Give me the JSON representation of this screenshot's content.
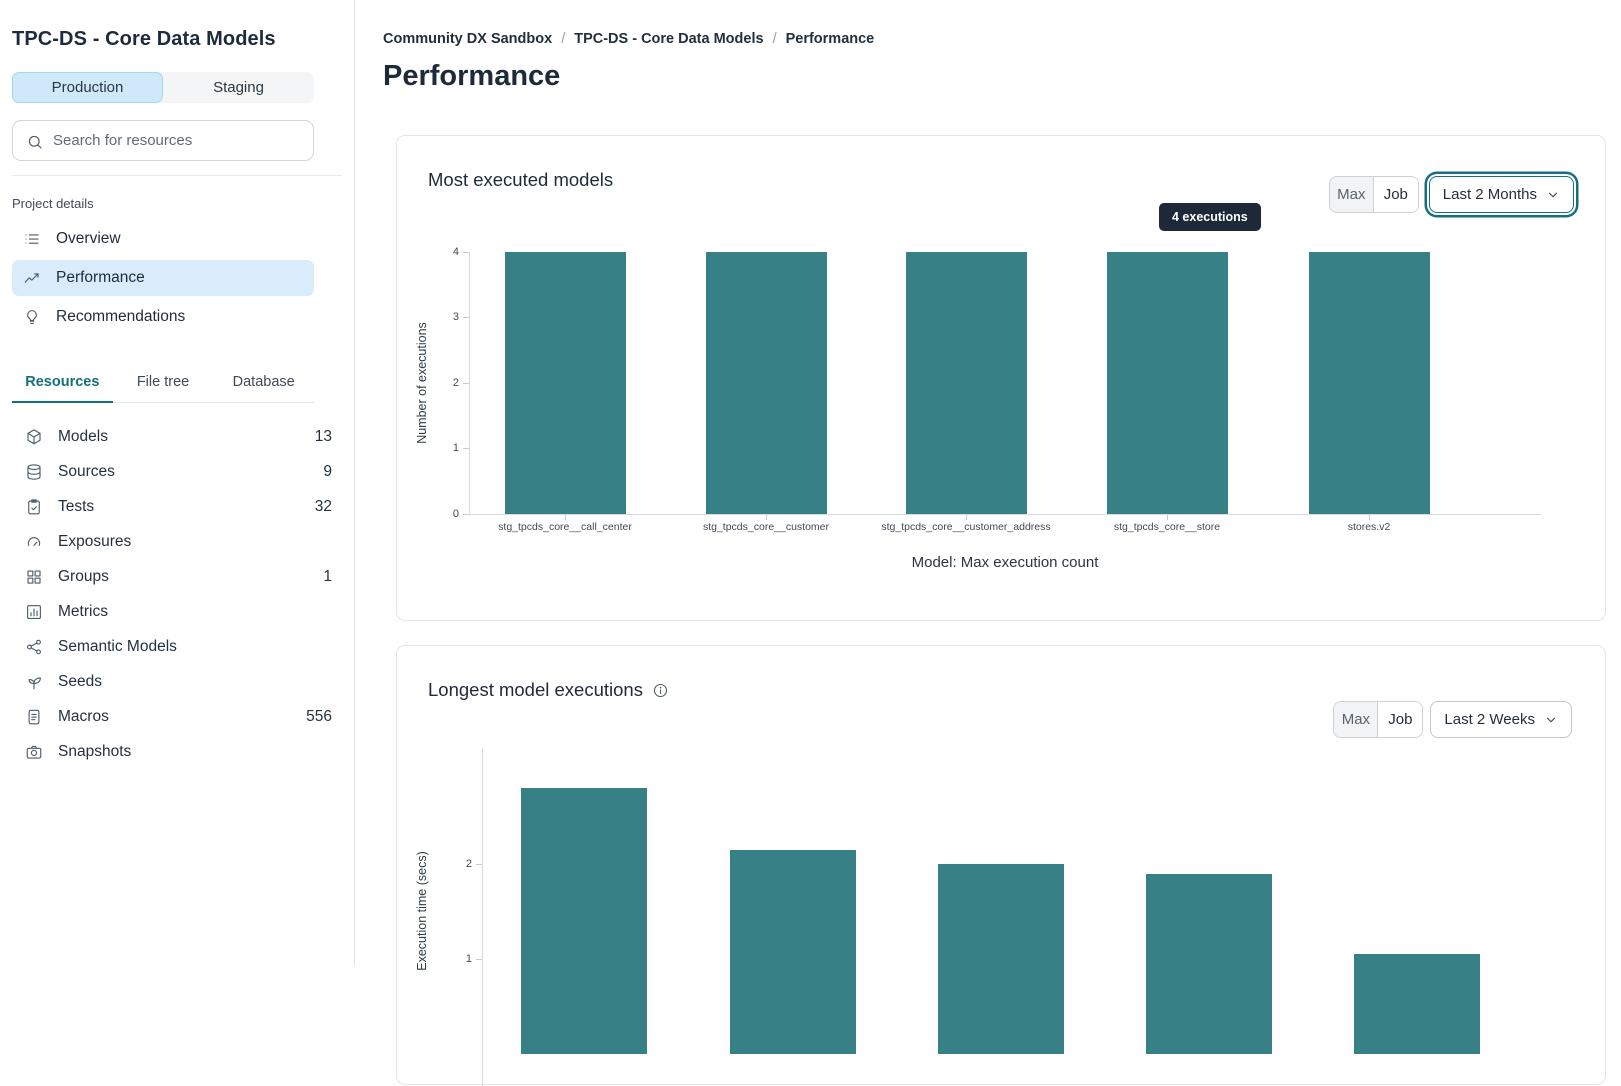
{
  "colors": {
    "accent": "#15707b",
    "bar": "#368086",
    "nav-active": "#d9ecfb",
    "env-active": "#cfe9fb",
    "env-active-border": "#a9d6f2",
    "tooltip-bg": "#1d2939",
    "text": "#1e2b3c"
  },
  "sidebar": {
    "project_title": "TPC-DS - Core Data Models",
    "env_tabs": [
      {
        "label": "Production",
        "active": true
      },
      {
        "label": "Staging",
        "active": false
      }
    ],
    "search": {
      "placeholder": "Search for resources",
      "value": ""
    },
    "section_label": "Project details",
    "nav": [
      {
        "label": "Overview",
        "icon": "list-icon",
        "active": false
      },
      {
        "label": "Performance",
        "icon": "trend-icon",
        "active": true
      },
      {
        "label": "Recommendations",
        "icon": "lightbulb-icon",
        "active": false
      }
    ],
    "tabs": [
      {
        "label": "Resources",
        "active": true
      },
      {
        "label": "File tree",
        "active": false
      },
      {
        "label": "Database",
        "active": false
      }
    ],
    "resources": [
      {
        "label": "Models",
        "count": "13",
        "icon": "cube-icon"
      },
      {
        "label": "Sources",
        "count": "9",
        "icon": "database-icon"
      },
      {
        "label": "Tests",
        "count": "32",
        "icon": "clipboard-check-icon"
      },
      {
        "label": "Exposures",
        "count": "",
        "icon": "gauge-icon"
      },
      {
        "label": "Groups",
        "count": "1",
        "icon": "grid-icon"
      },
      {
        "label": "Metrics",
        "count": "",
        "icon": "bar-chart-icon"
      },
      {
        "label": "Semantic Models",
        "count": "",
        "icon": "network-icon"
      },
      {
        "label": "Seeds",
        "count": "",
        "icon": "seedling-icon"
      },
      {
        "label": "Macros",
        "count": "556",
        "icon": "document-icon"
      },
      {
        "label": "Snapshots",
        "count": "",
        "icon": "camera-icon"
      }
    ]
  },
  "breadcrumb": [
    "Community DX Sandbox",
    "TPC-DS - Core Data Models",
    "Performance"
  ],
  "breadcrumb_separator": "/",
  "page_title": "Performance",
  "cards": [
    {
      "title": "Most executed models",
      "toggle": [
        "Max",
        "Job"
      ],
      "range": "Last 2 Months"
    },
    {
      "title": "Longest model executions",
      "toggle": [
        "Max",
        "Job"
      ],
      "range": "Last 2 Weeks"
    }
  ],
  "chart_data": [
    {
      "type": "bar",
      "title": "Most executed models",
      "categories": [
        "stg_tpcds_core__call_center",
        "stg_tpcds_core__customer",
        "stg_tpcds_core__customer_address",
        "stg_tpcds_core__store",
        "stores.v2"
      ],
      "values": [
        4,
        4,
        4,
        4,
        4
      ],
      "xlabel": "Model: Max execution count",
      "ylabel": "Number of executions",
      "ylim": [
        0,
        4
      ],
      "yticks": [
        0,
        1,
        2,
        3,
        4
      ],
      "grid": false,
      "legend": false,
      "annotation": "4 executions",
      "annotation_target": "stg_tpcds_core__store"
    },
    {
      "type": "bar",
      "title": "Longest model executions",
      "categories": [
        "",
        "",
        "",
        "",
        ""
      ],
      "values": [
        2.8,
        2.15,
        2.0,
        1.9,
        1.05
      ],
      "ylabel": "Execution time (secs)",
      "visible_yticks": [
        2,
        1
      ],
      "grid": false,
      "legend": false,
      "clipped": "chart bottom cut off by viewport"
    }
  ]
}
